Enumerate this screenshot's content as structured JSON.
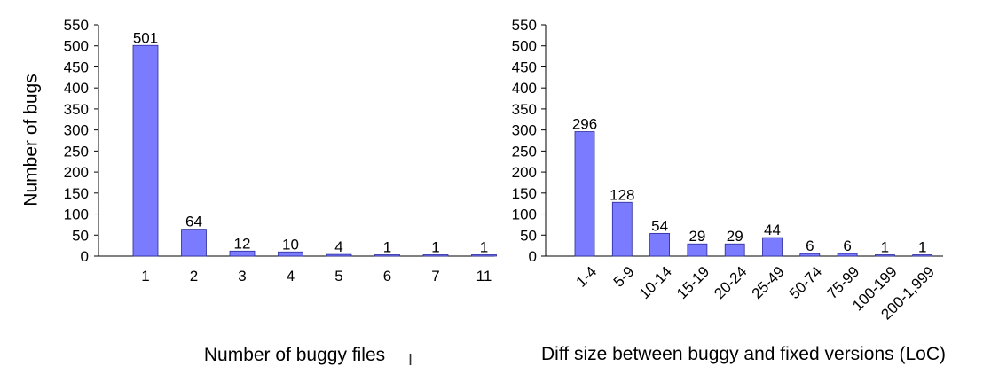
{
  "cursor_glyph": "I",
  "chart_data": [
    {
      "type": "bar",
      "title": "",
      "xlabel": "Number of buggy files",
      "ylabel": "Number of bugs",
      "ylim": [
        0,
        550
      ],
      "yticks": [
        0,
        50,
        100,
        150,
        200,
        250,
        300,
        350,
        400,
        450,
        500,
        550
      ],
      "categories": [
        "1",
        "2",
        "3",
        "4",
        "5",
        "6",
        "7",
        "11"
      ],
      "values": [
        501,
        64,
        12,
        10,
        4,
        1,
        1,
        1
      ],
      "data_labels": [
        "501",
        "64",
        "12",
        "10",
        "4",
        "1",
        "1",
        "1"
      ],
      "bar_color": "#7b7bff",
      "grid": false
    },
    {
      "type": "bar",
      "title": "",
      "xlabel": "Diff size between buggy and fixed versions (LoC)",
      "ylabel": "",
      "ylim": [
        0,
        550
      ],
      "yticks": [
        0,
        50,
        100,
        150,
        200,
        250,
        300,
        350,
        400,
        450,
        500,
        550
      ],
      "categories": [
        "1-4",
        "5-9",
        "10-14",
        "15-19",
        "20-24",
        "25-49",
        "50-74",
        "75-99",
        "100-199",
        "200-1,999"
      ],
      "values": [
        296,
        128,
        54,
        29,
        29,
        44,
        6,
        6,
        1,
        1
      ],
      "data_labels": [
        "296",
        "128",
        "54",
        "29",
        "29",
        "44",
        "6",
        "6",
        "1",
        "1"
      ],
      "bar_color": "#7b7bff",
      "grid": false
    }
  ]
}
